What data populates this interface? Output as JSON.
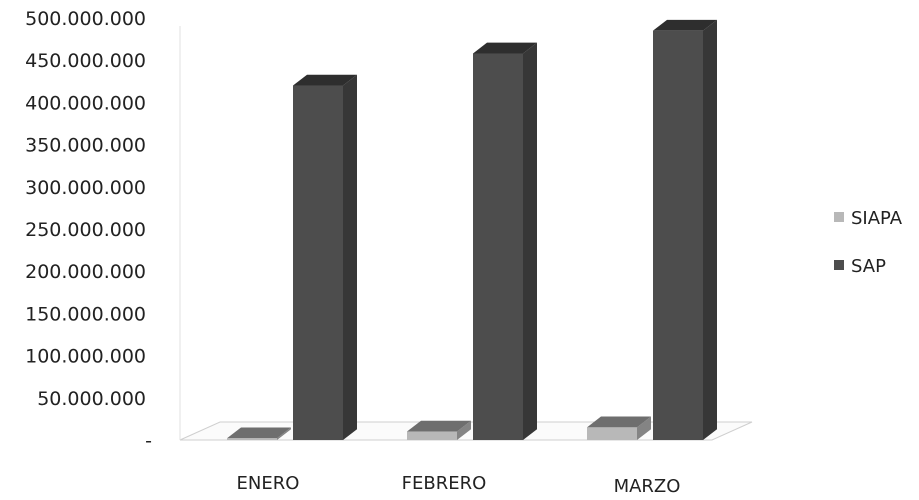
{
  "chart_data": {
    "type": "bar",
    "categories": [
      "ENERO",
      "FEBRERO",
      "MARZO"
    ],
    "series": [
      {
        "name": "SIAPA",
        "values": [
          2000000,
          10000000,
          15000000
        ],
        "color": "#b8b8b8"
      },
      {
        "name": "SAP",
        "values": [
          420000000,
          458000000,
          485000000
        ],
        "color": "#4d4d4d"
      }
    ],
    "ylim": [
      0,
      500000000
    ],
    "yticks": [
      {
        "value": 0,
        "label": "-"
      },
      {
        "value": 50000000,
        "label": "50.000.000"
      },
      {
        "value": 100000000,
        "label": "100.000.000"
      },
      {
        "value": 150000000,
        "label": "150.000.000"
      },
      {
        "value": 200000000,
        "label": "200.000.000"
      },
      {
        "value": 250000000,
        "label": "250.000.000"
      },
      {
        "value": 300000000,
        "label": "300.000.000"
      },
      {
        "value": 350000000,
        "label": "350.000.000"
      },
      {
        "value": 400000000,
        "label": "400.000.000"
      },
      {
        "value": 450000000,
        "label": "450.000.000"
      },
      {
        "value": 500000000,
        "label": "500.000.000"
      }
    ],
    "legend": {
      "position": "right",
      "entries": [
        "SIAPA",
        "SAP"
      ]
    },
    "grid": false,
    "three_d": true
  }
}
